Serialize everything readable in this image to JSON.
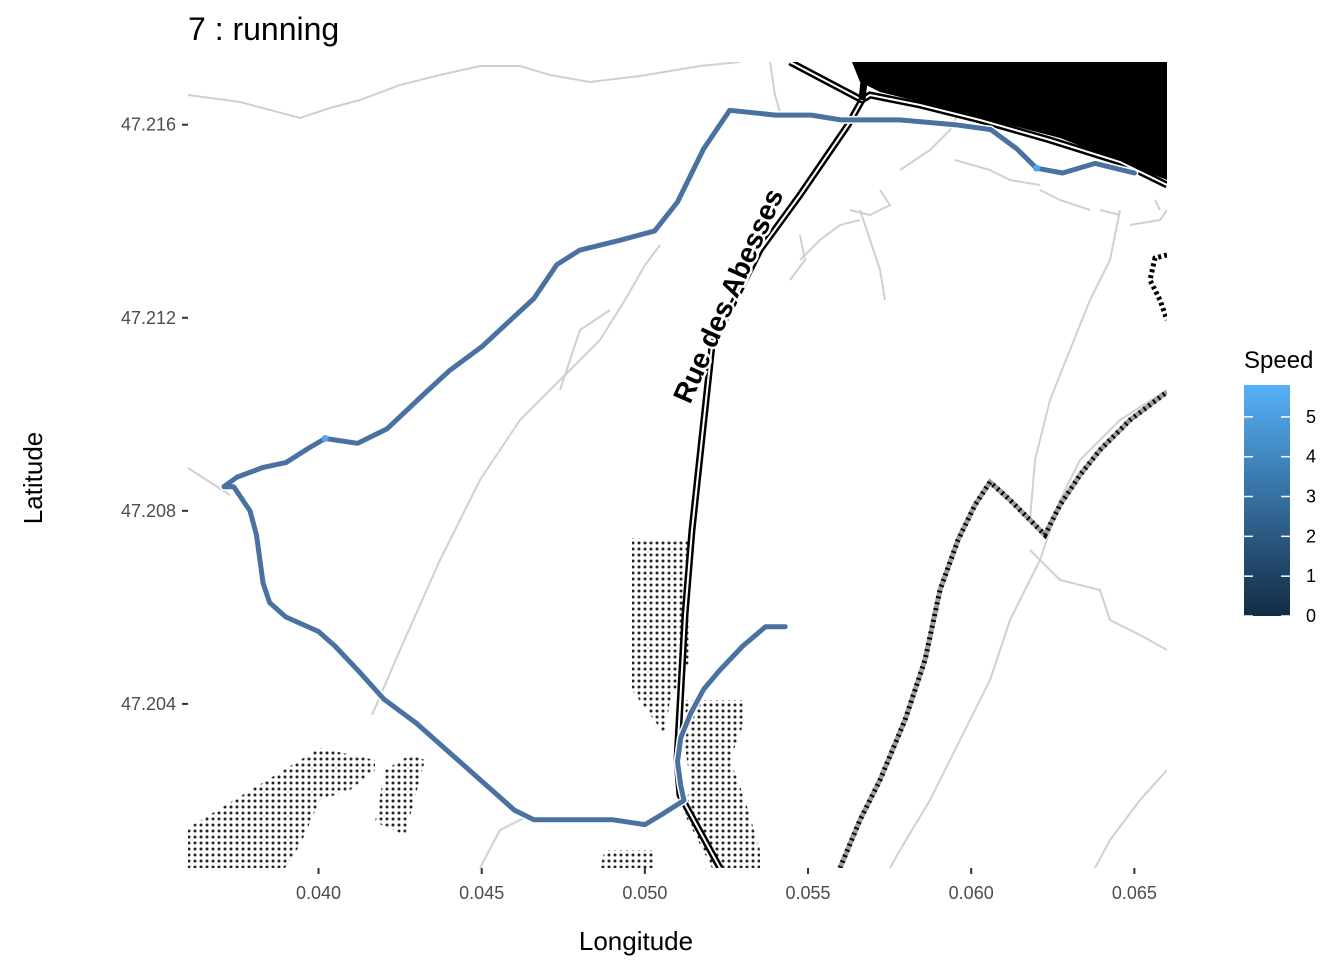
{
  "title": "7 : running",
  "chart_data": {
    "type": "line",
    "x_label": "Longitude",
    "y_label": "Latitude",
    "xlim": [
      0.036,
      0.066
    ],
    "ylim": [
      47.2006,
      47.2173
    ],
    "x_ticks": [
      {
        "value": 0.04,
        "label": "0.040"
      },
      {
        "value": 0.045,
        "label": "0.045"
      },
      {
        "value": 0.05,
        "label": "0.050"
      },
      {
        "value": 0.055,
        "label": "0.055"
      },
      {
        "value": 0.06,
        "label": "0.060"
      },
      {
        "value": 0.065,
        "label": "0.065"
      }
    ],
    "y_ticks": [
      {
        "value": 47.204,
        "label": "47.204"
      },
      {
        "value": 47.208,
        "label": "47.208"
      },
      {
        "value": 47.212,
        "label": "47.212"
      },
      {
        "value": 47.216,
        "label": "47.216"
      }
    ],
    "legend": {
      "title": "Speed",
      "min": 0,
      "max": 5.8,
      "ticks": [
        {
          "value": 0,
          "label": "0"
        },
        {
          "value": 1,
          "label": "1"
        },
        {
          "value": 2,
          "label": "2"
        },
        {
          "value": 3,
          "label": "3"
        },
        {
          "value": 4,
          "label": "4"
        },
        {
          "value": 5,
          "label": "5"
        }
      ],
      "color_low": "#132b43",
      "color_high": "#56b1f7"
    },
    "track_color": "#4a72a0",
    "track_highlight_color": "#56a8ee",
    "track": [
      [
        0.0543,
        47.2056
      ],
      [
        0.0537,
        47.2056
      ],
      [
        0.053,
        47.2052
      ],
      [
        0.0523,
        47.2047
      ],
      [
        0.0518,
        47.2043
      ],
      [
        0.0514,
        47.2038
      ],
      [
        0.0511,
        47.2033
      ],
      [
        0.051,
        47.2028
      ],
      [
        0.0511,
        47.2023
      ],
      [
        0.0512,
        47.202
      ],
      [
        0.0505,
        47.2017
      ],
      [
        0.05,
        47.2015
      ],
      [
        0.049,
        47.2016
      ],
      [
        0.048,
        47.2016
      ],
      [
        0.0466,
        47.2016
      ],
      [
        0.046,
        47.2018
      ],
      [
        0.045,
        47.2024
      ],
      [
        0.044,
        47.203
      ],
      [
        0.043,
        47.2036
      ],
      [
        0.042,
        47.2041
      ],
      [
        0.0412,
        47.2047
      ],
      [
        0.0405,
        47.2052
      ],
      [
        0.04,
        47.2055
      ],
      [
        0.039,
        47.2058
      ],
      [
        0.0385,
        47.2061
      ],
      [
        0.0383,
        47.2065
      ],
      [
        0.0382,
        47.207
      ],
      [
        0.0381,
        47.2075
      ],
      [
        0.0379,
        47.208
      ],
      [
        0.0374,
        47.2085
      ],
      [
        0.0371,
        47.2085
      ],
      [
        0.0375,
        47.2087
      ],
      [
        0.0383,
        47.2089
      ],
      [
        0.039,
        47.209
      ],
      [
        0.0397,
        47.2093
      ],
      [
        0.0402,
        47.2095
      ],
      [
        0.0412,
        47.2094
      ],
      [
        0.0421,
        47.2097
      ],
      [
        0.0432,
        47.2104
      ],
      [
        0.044,
        47.2109
      ],
      [
        0.045,
        47.2114
      ],
      [
        0.0458,
        47.2119
      ],
      [
        0.0466,
        47.2124
      ],
      [
        0.0473,
        47.2131
      ],
      [
        0.048,
        47.2134
      ],
      [
        0.0492,
        47.2136
      ],
      [
        0.0503,
        47.2138
      ],
      [
        0.051,
        47.2144
      ],
      [
        0.0518,
        47.2155
      ],
      [
        0.0526,
        47.2163
      ],
      [
        0.054,
        47.2162
      ],
      [
        0.0551,
        47.2162
      ],
      [
        0.056,
        47.2161
      ],
      [
        0.0578,
        47.2161
      ],
      [
        0.0595,
        47.216
      ],
      [
        0.0606,
        47.2159
      ],
      [
        0.0614,
        47.2155
      ],
      [
        0.062,
        47.2151
      ],
      [
        0.0628,
        47.215
      ],
      [
        0.0638,
        47.2152
      ],
      [
        0.065,
        47.215
      ]
    ],
    "track_highlight_points": [
      [
        0.0402,
        47.2095
      ],
      [
        0.062,
        47.2151
      ]
    ],
    "map_layer": {
      "road_label": "Rue des Abesses"
    }
  }
}
